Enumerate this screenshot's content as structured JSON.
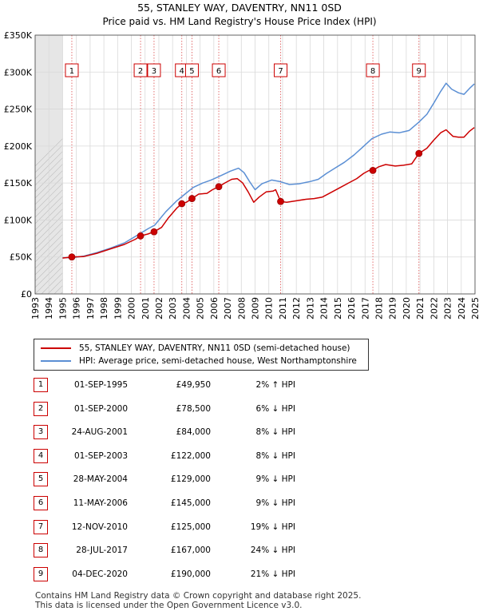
{
  "chart_data": {
    "type": "line",
    "title": "55, STANLEY WAY, DAVENTRY, NN11 0SD",
    "subtitle": "Price paid vs. HM Land Registry's House Price Index (HPI)",
    "xlim": [
      1993,
      2025
    ],
    "ylim": [
      0,
      350000
    ],
    "x_ticks": [
      "1993",
      "1994",
      "1995",
      "1996",
      "1997",
      "1998",
      "1999",
      "2000",
      "2001",
      "2002",
      "2003",
      "2004",
      "2005",
      "2006",
      "2007",
      "2008",
      "2009",
      "2010",
      "2011",
      "2012",
      "2013",
      "2014",
      "2015",
      "2016",
      "2017",
      "2018",
      "2019",
      "2020",
      "2021",
      "2022",
      "2023",
      "2024",
      "2025"
    ],
    "y_ticks": [
      {
        "value": 0,
        "label": "£0"
      },
      {
        "value": 50000,
        "label": "£50K"
      },
      {
        "value": 100000,
        "label": "£100K"
      },
      {
        "value": 150000,
        "label": "£150K"
      },
      {
        "value": 200000,
        "label": "£200K"
      },
      {
        "value": 250000,
        "label": "£250K"
      },
      {
        "value": 300000,
        "label": "£300K"
      },
      {
        "value": 350000,
        "label": "£350K"
      }
    ],
    "grid": true,
    "shaded_period_end": 1995.0,
    "series": [
      {
        "name": "55, STANLEY WAY, DAVENTRY, NN11 0SD (semi-detached house)",
        "color": "#cc0000",
        "points": [
          [
            1995.0,
            48500
          ],
          [
            1995.67,
            49950
          ],
          [
            1996.5,
            50500
          ],
          [
            1997.5,
            55000
          ],
          [
            1998.5,
            61000
          ],
          [
            1999.5,
            67000
          ],
          [
            2000.3,
            74000
          ],
          [
            2000.67,
            78500
          ],
          [
            2001.2,
            81000
          ],
          [
            2001.65,
            84000
          ],
          [
            2002.2,
            90000
          ],
          [
            2002.7,
            103000
          ],
          [
            2003.3,
            116000
          ],
          [
            2003.67,
            122000
          ],
          [
            2004.0,
            124000
          ],
          [
            2004.41,
            129000
          ],
          [
            2004.9,
            135000
          ],
          [
            2005.5,
            136000
          ],
          [
            2005.9,
            141000
          ],
          [
            2006.36,
            145000
          ],
          [
            2006.8,
            150000
          ],
          [
            2007.3,
            155000
          ],
          [
            2007.7,
            156000
          ],
          [
            2008.1,
            150000
          ],
          [
            2008.5,
            138000
          ],
          [
            2008.9,
            124000
          ],
          [
            2009.3,
            131000
          ],
          [
            2009.8,
            138000
          ],
          [
            2010.3,
            139000
          ],
          [
            2010.5,
            141000
          ],
          [
            2010.86,
            125000
          ],
          [
            2011.3,
            124000
          ],
          [
            2012.0,
            126000
          ],
          [
            2012.7,
            128000
          ],
          [
            2013.3,
            129000
          ],
          [
            2013.9,
            131000
          ],
          [
            2014.5,
            137000
          ],
          [
            2015.2,
            144000
          ],
          [
            2015.8,
            150000
          ],
          [
            2016.4,
            156000
          ],
          [
            2016.9,
            163000
          ],
          [
            2017.3,
            167000
          ],
          [
            2017.57,
            167000
          ],
          [
            2018.0,
            172000
          ],
          [
            2018.5,
            175000
          ],
          [
            2019.2,
            173000
          ],
          [
            2019.8,
            174000
          ],
          [
            2020.4,
            176000
          ],
          [
            2020.92,
            190000
          ],
          [
            2021.5,
            197000
          ],
          [
            2022.0,
            208000
          ],
          [
            2022.5,
            218000
          ],
          [
            2022.9,
            222000
          ],
          [
            2023.4,
            213000
          ],
          [
            2023.8,
            212000
          ],
          [
            2024.2,
            212000
          ],
          [
            2024.6,
            220000
          ],
          [
            2024.95,
            225000
          ]
        ]
      },
      {
        "name": "HPI: Average price, semi-detached house, West Northamptonshire",
        "color": "#5b8fd4",
        "points": [
          [
            1995.0,
            49000
          ],
          [
            1995.67,
            49000
          ],
          [
            1996.5,
            51000
          ],
          [
            1997.5,
            56000
          ],
          [
            1998.5,
            62000
          ],
          [
            1999.5,
            69000
          ],
          [
            2000.5,
            80000
          ],
          [
            2001.2,
            88000
          ],
          [
            2001.7,
            93000
          ],
          [
            2002.5,
            111000
          ],
          [
            2003.3,
            126000
          ],
          [
            2003.9,
            135000
          ],
          [
            2004.5,
            144000
          ],
          [
            2005.2,
            150000
          ],
          [
            2005.8,
            154000
          ],
          [
            2006.4,
            159000
          ],
          [
            2007.2,
            166000
          ],
          [
            2007.8,
            170000
          ],
          [
            2008.2,
            164000
          ],
          [
            2008.6,
            152000
          ],
          [
            2009.0,
            141000
          ],
          [
            2009.5,
            149000
          ],
          [
            2010.2,
            154000
          ],
          [
            2010.8,
            152000
          ],
          [
            2011.5,
            148000
          ],
          [
            2012.2,
            149000
          ],
          [
            2013.0,
            152000
          ],
          [
            2013.6,
            155000
          ],
          [
            2014.2,
            163000
          ],
          [
            2014.8,
            170000
          ],
          [
            2015.5,
            178000
          ],
          [
            2016.2,
            188000
          ],
          [
            2016.8,
            198000
          ],
          [
            2017.5,
            210000
          ],
          [
            2018.2,
            216000
          ],
          [
            2018.8,
            219000
          ],
          [
            2019.5,
            218000
          ],
          [
            2020.2,
            221000
          ],
          [
            2020.9,
            232000
          ],
          [
            2021.5,
            243000
          ],
          [
            2022.0,
            258000
          ],
          [
            2022.5,
            274000
          ],
          [
            2022.9,
            285000
          ],
          [
            2023.3,
            277000
          ],
          [
            2023.8,
            272000
          ],
          [
            2024.2,
            270000
          ],
          [
            2024.6,
            278000
          ],
          [
            2024.95,
            284000
          ]
        ]
      }
    ],
    "sales": [
      {
        "num": "1",
        "t": 1995.67,
        "price": 49950
      },
      {
        "num": "2",
        "t": 2000.67,
        "price": 78500
      },
      {
        "num": "3",
        "t": 2001.65,
        "price": 84000
      },
      {
        "num": "4",
        "t": 2003.67,
        "price": 122000
      },
      {
        "num": "5",
        "t": 2004.41,
        "price": 129000
      },
      {
        "num": "6",
        "t": 2006.36,
        "price": 145000
      },
      {
        "num": "7",
        "t": 2010.86,
        "price": 125000
      },
      {
        "num": "8",
        "t": 2017.57,
        "price": 167000
      },
      {
        "num": "9",
        "t": 2020.92,
        "price": 190000
      }
    ]
  },
  "legend": {
    "property_label": "55, STANLEY WAY, DAVENTRY, NN11 0SD (semi-detached house)",
    "hpi_label": "HPI: Average price, semi-detached house, West Northamptonshire",
    "property_color": "#cc0000",
    "hpi_color": "#5b8fd4"
  },
  "table": [
    {
      "num": "1",
      "date": "01-SEP-1995",
      "price": "£49,950",
      "hpi": "2% ↑ HPI"
    },
    {
      "num": "2",
      "date": "01-SEP-2000",
      "price": "£78,500",
      "hpi": "6% ↓ HPI"
    },
    {
      "num": "3",
      "date": "24-AUG-2001",
      "price": "£84,000",
      "hpi": "8% ↓ HPI"
    },
    {
      "num": "4",
      "date": "01-SEP-2003",
      "price": "£122,000",
      "hpi": "8% ↓ HPI"
    },
    {
      "num": "5",
      "date": "28-MAY-2004",
      "price": "£129,000",
      "hpi": "9% ↓ HPI"
    },
    {
      "num": "6",
      "date": "11-MAY-2006",
      "price": "£145,000",
      "hpi": "9% ↓ HPI"
    },
    {
      "num": "7",
      "date": "12-NOV-2010",
      "price": "£125,000",
      "hpi": "19% ↓ HPI"
    },
    {
      "num": "8",
      "date": "28-JUL-2017",
      "price": "£167,000",
      "hpi": "24% ↓ HPI"
    },
    {
      "num": "9",
      "date": "04-DEC-2020",
      "price": "£190,000",
      "hpi": "21% ↓ HPI"
    }
  ],
  "footer": {
    "line1": "Contains HM Land Registry data © Crown copyright and database right 2025.",
    "line2": "This data is licensed under the Open Government Licence v3.0."
  }
}
